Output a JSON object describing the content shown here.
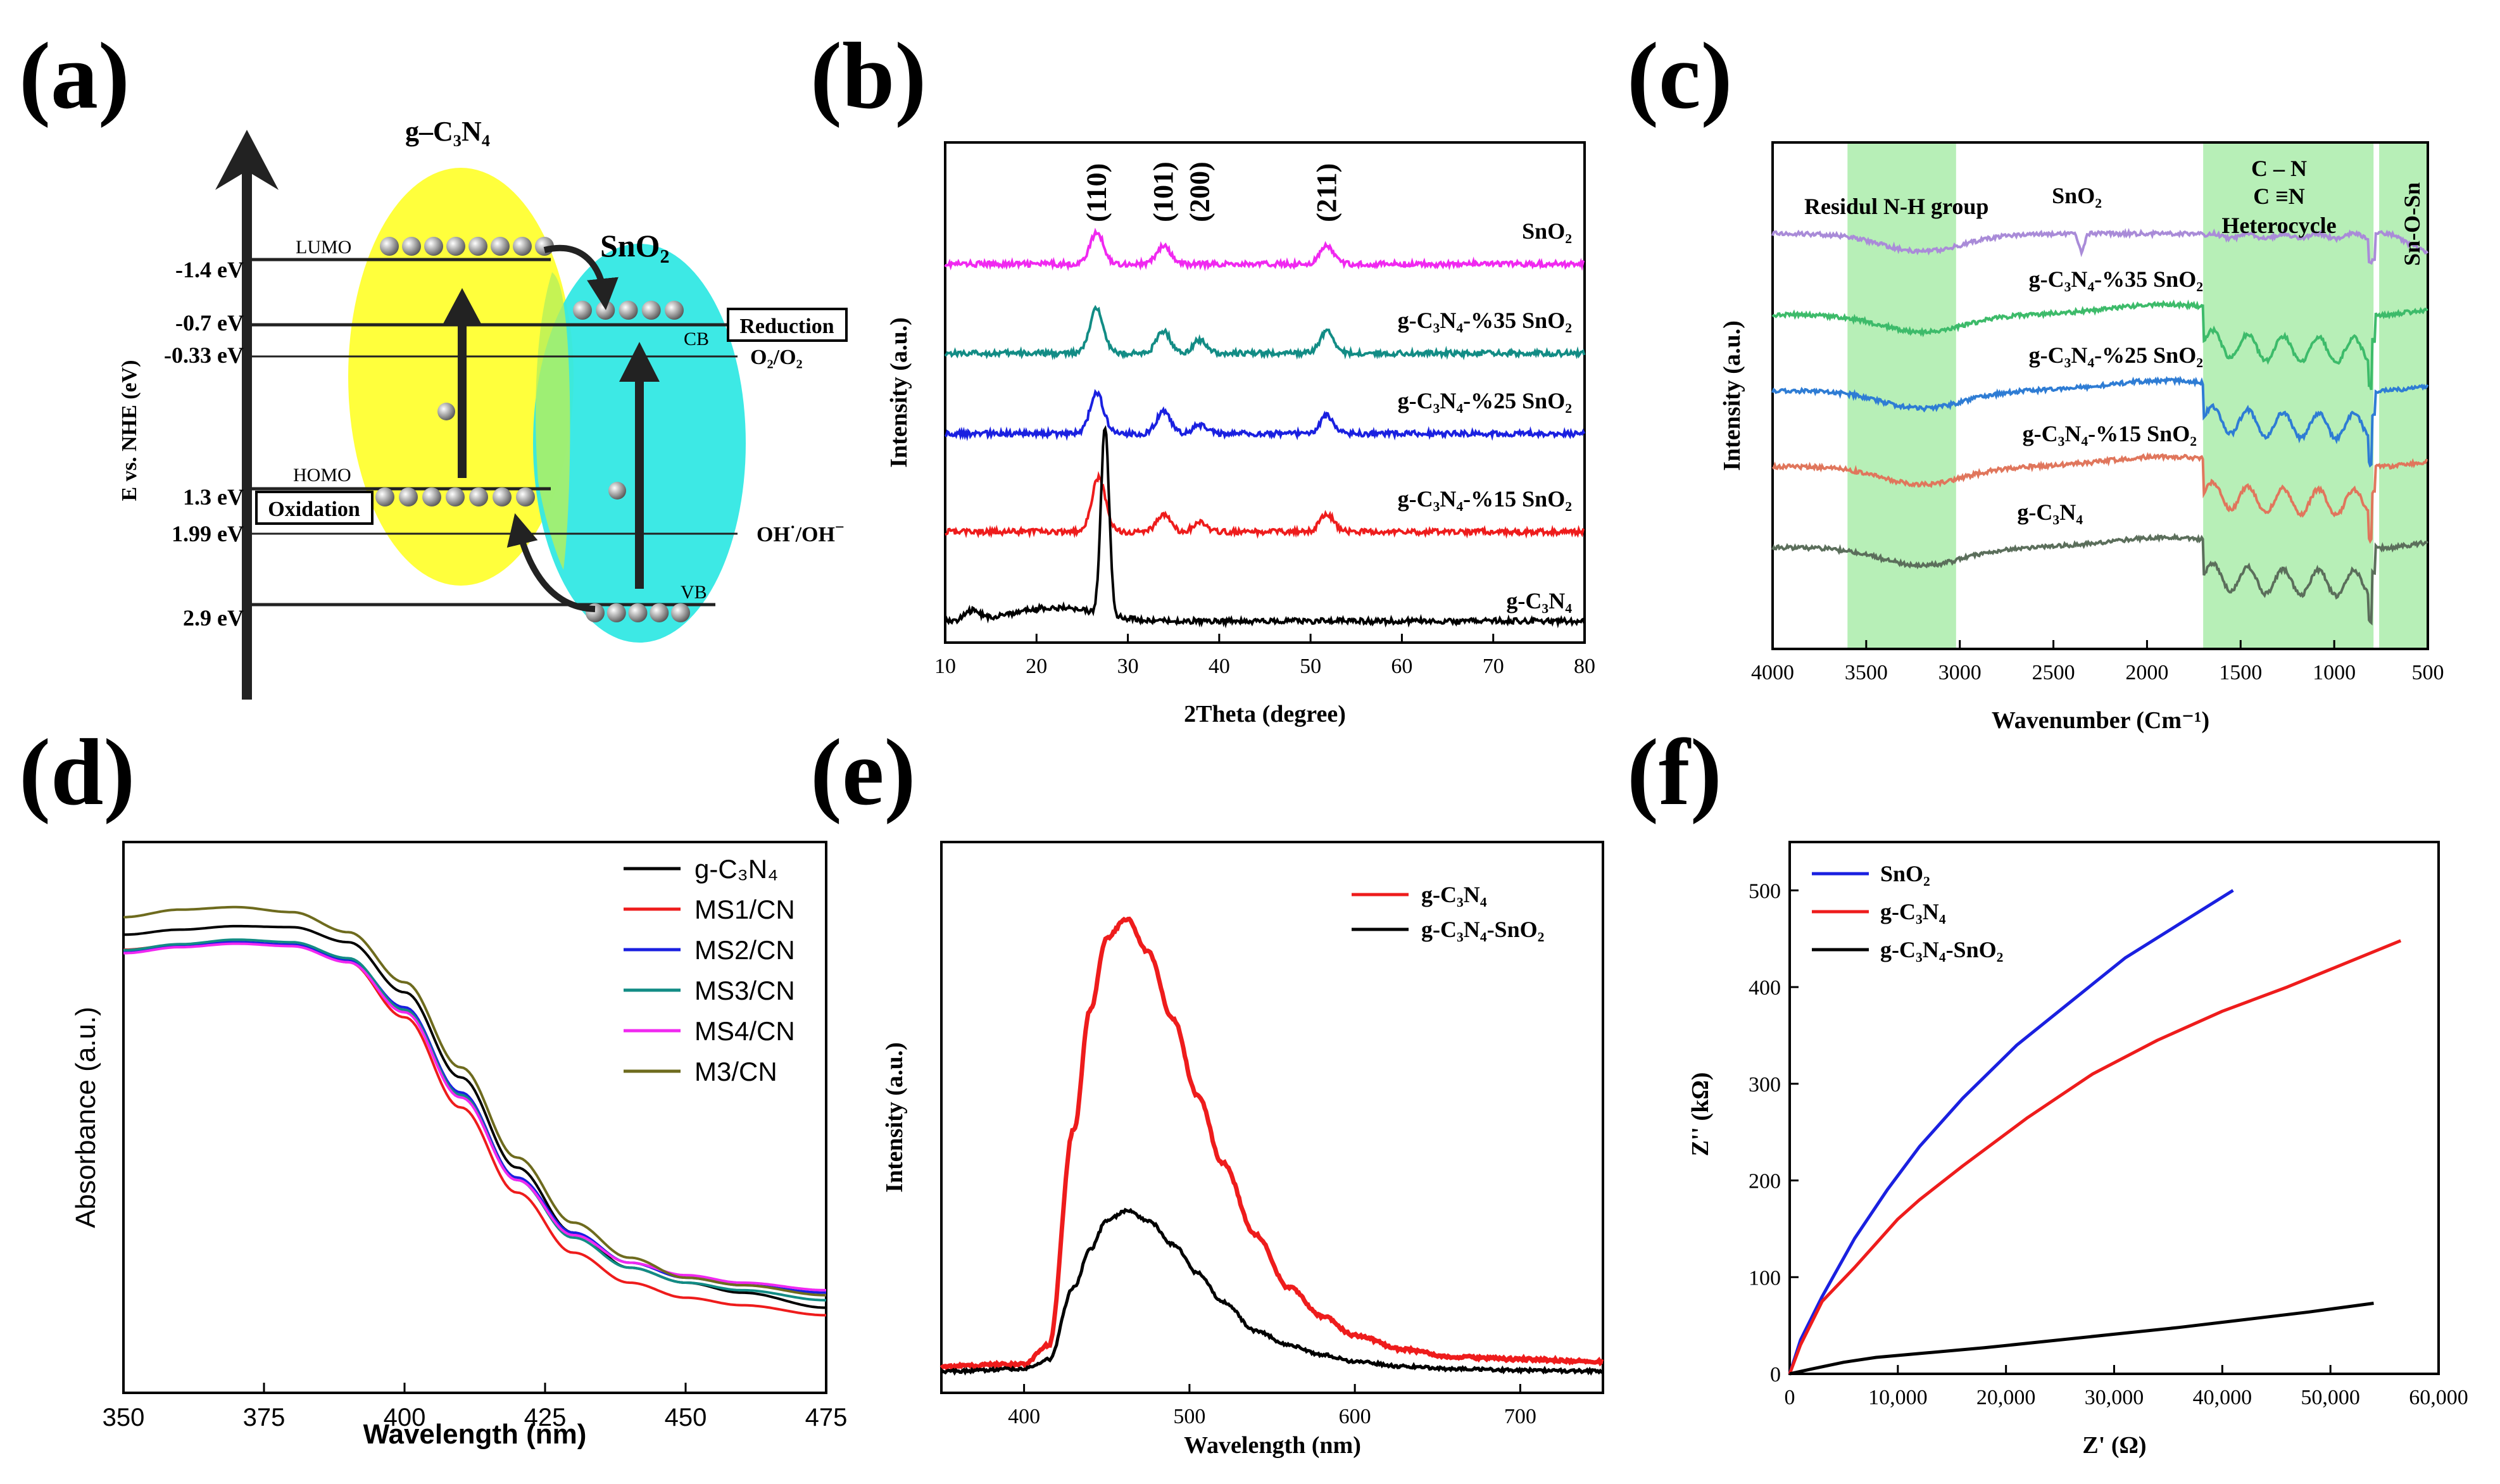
{
  "figure": {
    "panel_labels": [
      "(a)",
      "(b)",
      "(c)",
      "(d)",
      "(e)",
      "(f)"
    ]
  },
  "colors": {
    "yellow": "#FFFF3C",
    "cyan": "#33E8E4",
    "magenta": "#F028F0",
    "teal": "#128C85",
    "blue": "#1A20E0",
    "red": "#EE1C1C",
    "black": "#000000",
    "purple": "#A98BD8",
    "green_c": "#3DBB6A",
    "blue_c": "#2E7CD4",
    "salmon": "#E0765C",
    "gray_c": "#5B6E5B",
    "olive": "#6E6B1E",
    "band": "#B7EFB7"
  },
  "panel_a": {
    "gcn_title": "g–C₃N₄",
    "sno2_title": "SnO₂",
    "yaxis": "E vs. NHE (eV)",
    "energy_labels": [
      "-1.4 eV",
      "-0.7 eV",
      "-0.33 eV",
      "1.3 eV",
      "1.99 eV",
      "2.9 eV"
    ],
    "lumo": "LUMO",
    "homo": "HOMO",
    "cb": "CB",
    "vb": "VB",
    "reduction": "Reduction",
    "oxidation": "Oxidation",
    "o2": "O₂/O₂",
    "oh_a": "OH",
    "oh_sup": "·",
    "oh_b": "/OH",
    "oh_sup2": "−"
  },
  "chart_data": [
    {
      "panel": "b",
      "type": "line",
      "xlabel": "2Theta (degree)",
      "ylabel": "Intensity (a.u.)",
      "xlim": [
        10,
        80
      ],
      "xticks": [
        "10",
        "20",
        "30",
        "40",
        "50",
        "60",
        "70",
        "80"
      ],
      "peak_labels": [
        "(110)",
        "(101)",
        "(200)",
        "(211)"
      ],
      "peak_positions": [
        26.6,
        33.9,
        37.9,
        51.8
      ],
      "series": [
        {
          "name": "SnO₂",
          "offset": 0.8,
          "peaks": [
            [
              26.6,
              0.07
            ],
            [
              33.9,
              0.04
            ],
            [
              51.8,
              0.04
            ]
          ]
        },
        {
          "name": "g-C₃N₄-%35 SnO₂",
          "offset": 0.6,
          "peaks": [
            [
              26.6,
              0.1
            ],
            [
              33.9,
              0.05
            ],
            [
              37.9,
              0.03
            ],
            [
              51.8,
              0.05
            ]
          ]
        },
        {
          "name": "g-C₃N₄-%25 SnO₂",
          "offset": 0.42,
          "peaks": [
            [
              26.6,
              0.09
            ],
            [
              33.9,
              0.05
            ],
            [
              37.9,
              0.02
            ],
            [
              51.8,
              0.04
            ]
          ]
        },
        {
          "name": "g-C₃N₄-%15 SnO₂",
          "offset": 0.2,
          "peaks": [
            [
              26.8,
              0.12
            ],
            [
              33.9,
              0.04
            ],
            [
              37.9,
              0.02
            ],
            [
              51.8,
              0.04
            ]
          ]
        },
        {
          "name": "g-C₃N₄",
          "offset": 0.0,
          "peaks": [
            [
              27.5,
              0.42
            ],
            [
              13.0,
              0.02
            ]
          ]
        }
      ]
    },
    {
      "panel": "c",
      "type": "line",
      "xlabel": "Wavenumber (Cm⁻¹)",
      "ylabel": "Intensity (a.u.)",
      "xlim": [
        4000,
        500
      ],
      "xticks": [
        "4000",
        "3500",
        "3000",
        "2500",
        "2000",
        "1500",
        "1000",
        "500"
      ],
      "bands": [
        [
          3600,
          3020
        ],
        [
          1700,
          790
        ],
        [
          760,
          500
        ]
      ],
      "band_labels": [
        "Residul N-H group",
        "C – N",
        "C ≡N",
        "Heterocycle",
        "Sn-O-Sn"
      ],
      "series": [
        {
          "name": "SnO₂",
          "offset": 0.82
        },
        {
          "name": "g-C₃N₄-%35 SnO₂",
          "offset": 0.66
        },
        {
          "name": "g-C₃N₄-%25 SnO₂",
          "offset": 0.51
        },
        {
          "name": "g-C₃N₄-%15 SnO₂",
          "offset": 0.36
        },
        {
          "name": "g-C₃N₄",
          "offset": 0.2
        }
      ]
    },
    {
      "panel": "d",
      "type": "line",
      "xlabel": "Wavelength (nm)",
      "ylabel": "Absorbance (a.u.)",
      "xlim": [
        350,
        475
      ],
      "xticks": [
        "350",
        "375",
        "400",
        "425",
        "450",
        "475"
      ],
      "legend": [
        "g-C₃N₄",
        "MS1/CN",
        "MS2/CN",
        "MS3/CN",
        "MS4/CN",
        "M3/CN"
      ],
      "series": [
        {
          "name": "g-C₃N₄",
          "x": [
            350,
            360,
            370,
            380,
            390,
            400,
            410,
            420,
            430,
            440,
            450,
            460,
            475
          ],
          "y": [
            0.915,
            0.925,
            0.932,
            0.93,
            0.9,
            0.8,
            0.63,
            0.45,
            0.32,
            0.25,
            0.22,
            0.2,
            0.17
          ]
        },
        {
          "name": "MS1/CN",
          "x": [
            350,
            360,
            370,
            380,
            390,
            400,
            410,
            420,
            430,
            440,
            450,
            460,
            475
          ],
          "y": [
            0.885,
            0.895,
            0.9,
            0.895,
            0.86,
            0.75,
            0.57,
            0.4,
            0.28,
            0.22,
            0.19,
            0.175,
            0.155
          ]
        },
        {
          "name": "MS2/CN",
          "x": [
            350,
            360,
            370,
            380,
            390,
            400,
            410,
            420,
            430,
            440,
            450,
            460,
            475
          ],
          "y": [
            0.88,
            0.893,
            0.9,
            0.895,
            0.865,
            0.77,
            0.6,
            0.43,
            0.32,
            0.26,
            0.23,
            0.215,
            0.2
          ]
        },
        {
          "name": "MS3/CN",
          "x": [
            350,
            360,
            370,
            380,
            390,
            400,
            410,
            420,
            430,
            440,
            450,
            460,
            475
          ],
          "y": [
            0.884,
            0.896,
            0.905,
            0.9,
            0.868,
            0.765,
            0.595,
            0.425,
            0.31,
            0.25,
            0.22,
            0.205,
            0.185
          ]
        },
        {
          "name": "MS4/CN",
          "x": [
            350,
            360,
            370,
            380,
            390,
            400,
            410,
            420,
            430,
            440,
            450,
            460,
            475
          ],
          "y": [
            0.878,
            0.89,
            0.897,
            0.892,
            0.86,
            0.76,
            0.59,
            0.425,
            0.315,
            0.26,
            0.235,
            0.22,
            0.205
          ]
        },
        {
          "name": "M3/CN",
          "x": [
            350,
            360,
            370,
            380,
            390,
            400,
            410,
            420,
            430,
            440,
            450,
            460,
            475
          ],
          "y": [
            0.95,
            0.965,
            0.97,
            0.96,
            0.92,
            0.82,
            0.65,
            0.47,
            0.34,
            0.27,
            0.23,
            0.215,
            0.195
          ]
        }
      ]
    },
    {
      "panel": "e",
      "type": "line",
      "xlabel": "Wavelength (nm)",
      "ylabel": "Intensity (a.u.)",
      "xlim": [
        350,
        750
      ],
      "xticks": [
        "400",
        "500",
        "600",
        "700"
      ],
      "legend": [
        "g-C₃N₄",
        "g-C₃N₄-SnO₂"
      ],
      "series": [
        {
          "name": "g-C₃N₄",
          "x": [
            350,
            400,
            415,
            430,
            440,
            450,
            462,
            475,
            490,
            505,
            520,
            540,
            560,
            580,
            600,
            630,
            660,
            700,
            750
          ],
          "y": [
            0.055,
            0.06,
            0.1,
            0.55,
            0.8,
            0.95,
            0.99,
            0.92,
            0.78,
            0.62,
            0.48,
            0.33,
            0.22,
            0.16,
            0.12,
            0.09,
            0.075,
            0.07,
            0.065
          ]
        },
        {
          "name": "g-C₃N₄-SnO₂",
          "x": [
            350,
            400,
            415,
            430,
            440,
            450,
            462,
            475,
            490,
            505,
            520,
            540,
            560,
            580,
            600,
            630,
            660,
            700,
            750
          ],
          "y": [
            0.045,
            0.05,
            0.07,
            0.22,
            0.3,
            0.36,
            0.38,
            0.36,
            0.31,
            0.25,
            0.19,
            0.13,
            0.1,
            0.08,
            0.065,
            0.055,
            0.05,
            0.047,
            0.045
          ]
        }
      ]
    },
    {
      "panel": "f",
      "type": "line",
      "xlabel": "Z' (Ω)",
      "ylabel": "Z'' (kΩ)",
      "xlim": [
        0,
        60000
      ],
      "ylim": [
        0,
        550
      ],
      "xticks": [
        "0",
        "10,000",
        "20,000",
        "30,000",
        "40,000",
        "50,000",
        "60,000"
      ],
      "yticks": [
        "0",
        "100",
        "200",
        "300",
        "400",
        "500"
      ],
      "legend": [
        "SnO₂",
        "g-C₃N₄",
        "g-C₃N₄-SnO₂"
      ],
      "series": [
        {
          "name": "SnO₂",
          "x": [
            0,
            1000,
            3000,
            6000,
            9000,
            12000,
            16000,
            21000,
            26000,
            31000,
            36000,
            41000
          ],
          "y": [
            0,
            35,
            80,
            140,
            190,
            235,
            285,
            340,
            385,
            430,
            465,
            500
          ]
        },
        {
          "name": "g-C₃N₄",
          "x": [
            0,
            1000,
            3000,
            6000,
            8000,
            10000,
            12000,
            16000,
            22000,
            28000,
            34000,
            40000,
            46000,
            56500
          ],
          "y": [
            0,
            30,
            75,
            110,
            135,
            160,
            180,
            215,
            265,
            310,
            345,
            375,
            400,
            448
          ]
        },
        {
          "name": "g-C₃N₄-SnO₂",
          "x": [
            0,
            2000,
            5000,
            8000,
            12000,
            18000,
            24000,
            30000,
            36000,
            42000,
            48000,
            54000
          ],
          "y": [
            0,
            5,
            12,
            17,
            21,
            27,
            34,
            41,
            48,
            56,
            64,
            73
          ]
        }
      ]
    }
  ]
}
